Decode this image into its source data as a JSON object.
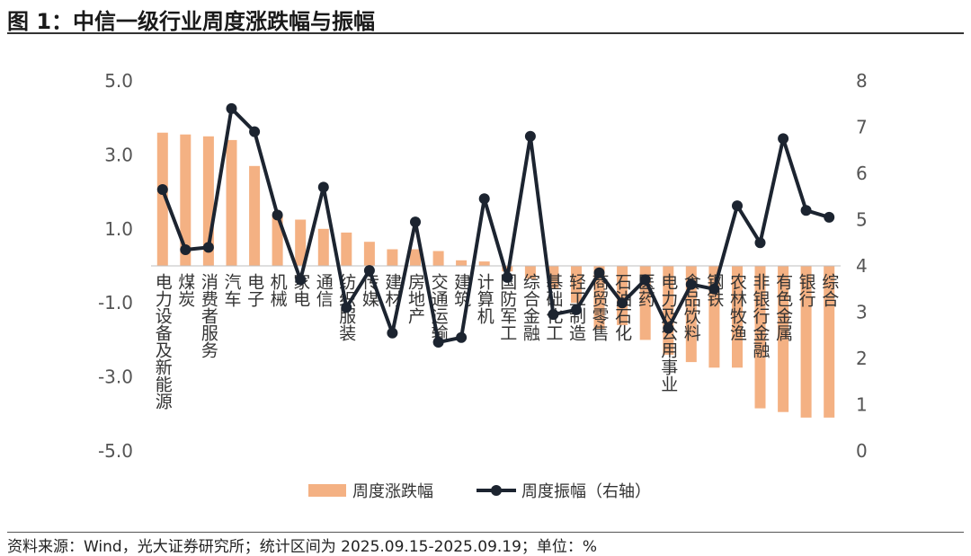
{
  "header": {
    "title": "图 1：中信一级行业周度涨跌幅与振幅"
  },
  "footer": {
    "source": "资料来源：Wind，光大证券研究所；统计区间为 2025.09.15-2025.09.19；单位：%"
  },
  "chart_data": {
    "type": "bar+line",
    "title": "中信一级行业周度涨跌幅与振幅",
    "categories": [
      "电力设备及新能源",
      "煤炭",
      "消费者服务",
      "汽车",
      "电子",
      "机械",
      "家电",
      "通信",
      "纺织服装",
      "传媒",
      "建材",
      "房地产",
      "交通运输",
      "建筑",
      "计算机",
      "国防军工",
      "综合金融",
      "基础化工",
      "轻工制造",
      "商贸零售",
      "石油石化",
      "医药",
      "电力及公用事业",
      "食品饮料",
      "钢铁",
      "农林牧渔",
      "非银行金融",
      "有色金属",
      "银行",
      "综合"
    ],
    "series": [
      {
        "name": "周度涨跌幅",
        "axis": "left",
        "kind": "bar",
        "color": "#F4B183",
        "values": [
          3.6,
          3.55,
          3.5,
          3.4,
          2.7,
          1.35,
          1.25,
          1.0,
          0.9,
          0.65,
          0.45,
          0.45,
          0.4,
          0.15,
          0.12,
          -0.15,
          -0.35,
          -0.6,
          -1.0,
          -1.7,
          -1.6,
          -2.0,
          -2.4,
          -2.6,
          -2.75,
          -2.75,
          -3.85,
          -3.95,
          -4.1,
          -4.1
        ]
      },
      {
        "name": "周度振幅（右轴）",
        "axis": "right",
        "kind": "line",
        "color": "#1c2430",
        "values": [
          5.65,
          4.35,
          4.4,
          7.4,
          6.9,
          5.1,
          3.7,
          5.7,
          3.1,
          3.9,
          2.55,
          4.95,
          2.35,
          2.45,
          5.45,
          3.75,
          6.8,
          2.95,
          3.05,
          3.85,
          3.2,
          3.7,
          2.65,
          3.6,
          3.5,
          5.3,
          4.5,
          6.75,
          5.2,
          5.05
        ]
      }
    ],
    "left_axis": {
      "ylim": [
        -5,
        5
      ],
      "ticks": [
        "5.0",
        "3.0",
        "1.0",
        "-1.0",
        "-3.0",
        "-5.0"
      ]
    },
    "right_axis": {
      "ylim": [
        0,
        8
      ],
      "ticks": [
        "8",
        "7",
        "6",
        "5",
        "4",
        "3",
        "2",
        "1",
        "0"
      ]
    },
    "legend": [
      "周度涨跌幅",
      "周度振幅（右轴）"
    ]
  }
}
